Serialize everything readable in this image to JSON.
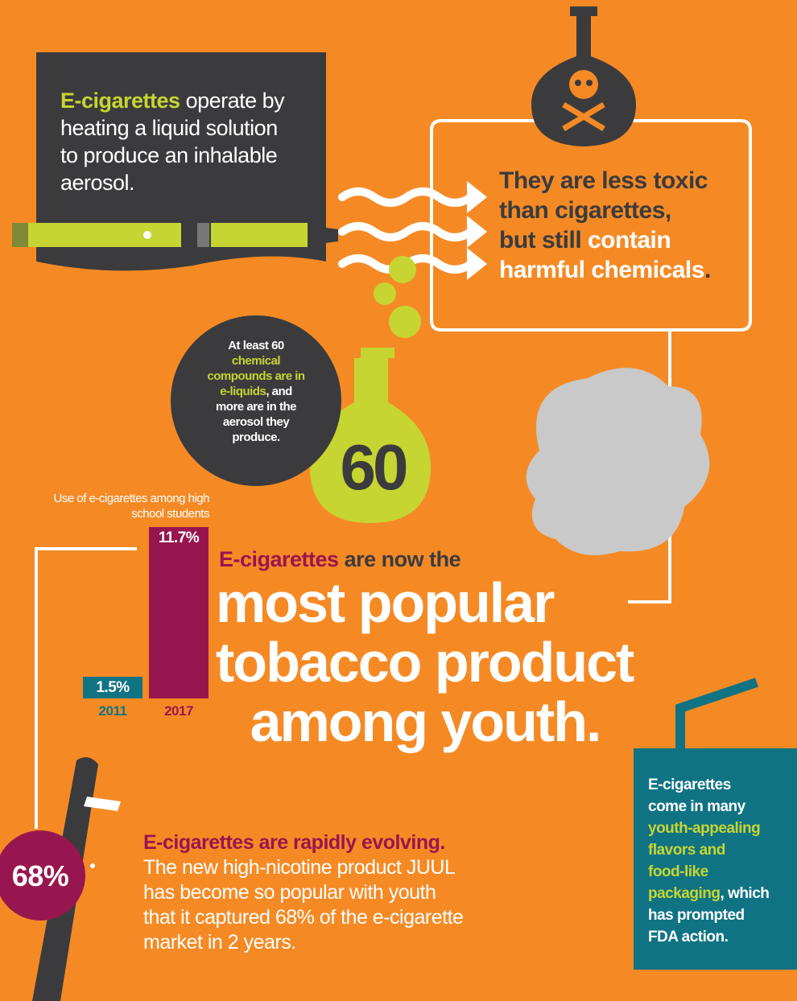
{
  "intro": {
    "highlight": "E-cigarettes",
    "lines": [
      "operate by",
      "heating a liquid solution",
      "to produce an inhalable",
      "aerosol."
    ]
  },
  "toxic": {
    "lines": [
      "They are less toxic",
      "than cigarettes,",
      "but still"
    ],
    "highlight": [
      "contain",
      "harmful chemicals"
    ],
    "end": "."
  },
  "compounds": {
    "start": "At least 60",
    "highlight": [
      "chemical",
      "compounds are in",
      "e-liquids"
    ],
    "end": [
      ", and",
      "more are in the",
      "aerosol they",
      "produce."
    ]
  },
  "flask_number": "60",
  "chart_data": {
    "type": "bar",
    "title": "Use of e-cigarettes among high school students",
    "categories": [
      "2011",
      "2017"
    ],
    "values": [
      1.5,
      11.7
    ],
    "value_labels": [
      "1.5%",
      "11.7%"
    ],
    "colors": [
      "#0f7384",
      "#98164f"
    ]
  },
  "headline": {
    "highlight": "E-cigarettes",
    "lead": "are now the",
    "big": [
      "most popular",
      "tobacco product",
      "among youth."
    ]
  },
  "evolving": {
    "title": "E-cigarettes are rapidly evolving.",
    "lines": [
      "The new high-nicotine product JUUL",
      "has become so popular with youth",
      "that it captured 68% of the e-cigarette",
      "market in 2 years."
    ],
    "badge": "68%"
  },
  "flavors": {
    "start": [
      "E-cigarettes",
      "come in many"
    ],
    "highlight": [
      "youth-appealing",
      "flavors and",
      "food-like",
      "packaging"
    ],
    "end": [
      ", which",
      "has prompted",
      "FDA action."
    ]
  }
}
